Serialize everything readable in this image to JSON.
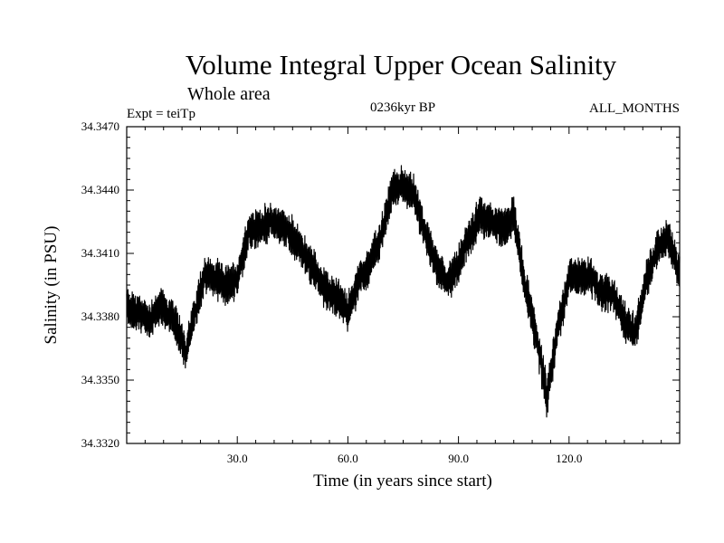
{
  "chart_data": {
    "type": "line",
    "title": "Volume Integral Upper Ocean Salinity",
    "subtitle": "Whole area",
    "experiment": "Expt = teiTp",
    "period": "0236kyr BP",
    "months": "ALL_MONTHS",
    "xlabel": "Time (in years since start)",
    "ylabel": "Salinity (in PSU)",
    "xlim": [
      0,
      150
    ],
    "ylim": [
      34.332,
      34.347
    ],
    "x_ticks": [
      30,
      60,
      90,
      120
    ],
    "x_tick_labels": [
      "30.0",
      "60.0",
      "90.0",
      "120.0"
    ],
    "y_ticks": [
      34.332,
      34.335,
      34.338,
      34.341,
      34.344,
      34.347
    ],
    "y_tick_labels": [
      "34.3320",
      "34.3350",
      "34.3380",
      "34.3410",
      "34.3440",
      "34.3470"
    ],
    "series": [
      {
        "name": "Salinity",
        "color": "#000000",
        "x": [
          0,
          3,
          6,
          9,
          12,
          15,
          16,
          18,
          21,
          24,
          27,
          30,
          33,
          36,
          39,
          42,
          45,
          48,
          51,
          54,
          57,
          60,
          63,
          66,
          69,
          72,
          75,
          78,
          81,
          84,
          87,
          90,
          93,
          96,
          99,
          102,
          105,
          108,
          111,
          114,
          117,
          120,
          123,
          126,
          129,
          132,
          135,
          138,
          141,
          144,
          147,
          150
        ],
        "values": [
          34.3385,
          34.3382,
          34.3378,
          34.3385,
          34.338,
          34.337,
          34.3362,
          34.3378,
          34.34,
          34.3398,
          34.3395,
          34.3398,
          34.342,
          34.3422,
          34.3425,
          34.3423,
          34.3418,
          34.341,
          34.3402,
          34.3392,
          34.339,
          34.3382,
          34.3398,
          34.3405,
          34.3418,
          34.344,
          34.3442,
          34.3438,
          34.3418,
          34.3405,
          34.3395,
          34.3405,
          34.3418,
          34.3428,
          34.3425,
          34.3422,
          34.3428,
          34.3395,
          34.3372,
          34.3342,
          34.3375,
          34.3398,
          34.34,
          34.3398,
          34.3392,
          34.339,
          34.3378,
          34.3372,
          34.3398,
          34.3412,
          34.3418,
          34.34
        ]
      }
    ]
  }
}
